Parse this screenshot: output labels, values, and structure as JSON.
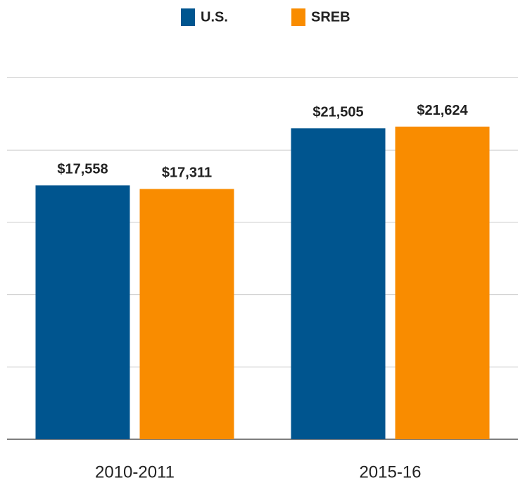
{
  "chart_data": {
    "type": "bar",
    "categories": [
      "2010-2011",
      "2015-16"
    ],
    "series": [
      {
        "name": "U.S.",
        "color": "#00558f",
        "values": [
          17558,
          21505
        ],
        "value_labels": [
          "$17,558",
          "$21,505"
        ]
      },
      {
        "name": "SREB",
        "color": "#f98c00",
        "values": [
          17311,
          21624
        ],
        "value_labels": [
          "$17,311",
          "$21,624"
        ]
      }
    ],
    "ylim": [
      0,
      25000
    ],
    "yticks": [
      0,
      5000,
      10000,
      15000,
      20000,
      25000
    ],
    "grid": true
  }
}
